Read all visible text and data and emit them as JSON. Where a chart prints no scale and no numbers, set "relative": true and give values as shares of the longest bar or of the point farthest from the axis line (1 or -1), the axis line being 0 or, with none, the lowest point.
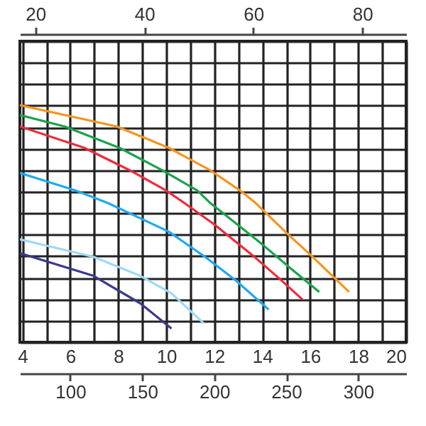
{
  "chart_data": {
    "type": "line",
    "relative": true,
    "grid": true,
    "xlim": [
      3.9,
      20
    ],
    "xticks": [
      4,
      {
        "value": 5,
        "label": null
      },
      6,
      {
        "value": 7,
        "label": null
      },
      8,
      {
        "value": 9,
        "label": null
      },
      10,
      {
        "value": 11,
        "label": null
      },
      12,
      {
        "value": 13,
        "label": null
      },
      14,
      {
        "value": 15,
        "label": null
      },
      16,
      {
        "value": 17,
        "label": null
      },
      18,
      {
        "value": 19,
        "label": null
      },
      20
    ],
    "x2lim": [
      17.17,
      88.06
    ],
    "x2ticks": [
      20,
      40,
      60,
      80
    ],
    "annotations": [
      "100",
      "150",
      "200",
      "250",
      "300"
    ],
    "series": [
      {
        "color": "#f7941d",
        "x": [
          3.9,
          7.95,
          10.11,
          11.84,
          13.08,
          13.73,
          15.08,
          16.05,
          17.03,
          17.62
        ],
        "values": [
          1.0,
          0.91,
          0.82,
          0.725,
          0.64,
          0.587,
          0.455,
          0.365,
          0.27,
          0.212
        ]
      },
      {
        "color": "#1aa34a",
        "x": [
          3.9,
          5.78,
          8.05,
          9.84,
          11.3,
          11.84,
          14.0,
          15.24,
          16.38
        ],
        "values": [
          0.958,
          0.91,
          0.82,
          0.725,
          0.64,
          0.587,
          0.413,
          0.307,
          0.212
        ]
      },
      {
        "color": "#ee2a3a",
        "x": [
          3.9,
          6.59,
          8.49,
          10.0,
          10.76,
          12.0,
          13.62,
          14.7,
          15.68
        ],
        "values": [
          0.91,
          0.82,
          0.725,
          0.64,
          0.587,
          0.497,
          0.365,
          0.27,
          0.18
        ]
      },
      {
        "color": "#1eaaf1",
        "x": [
          3.9,
          6.22,
          7.57,
          10.11,
          11.62,
          12.92,
          14.27
        ],
        "values": [
          0.714,
          0.64,
          0.587,
          0.466,
          0.36,
          0.259,
          0.138
        ]
      },
      {
        "color": "#9fd9f6",
        "x": [
          3.9,
          6.97,
          8.92,
          10.22,
          11.57
        ],
        "values": [
          0.434,
          0.36,
          0.28,
          0.206,
          0.079
        ]
      },
      {
        "color": "#3b3a8f",
        "x": [
          3.9,
          6.97,
          8.92,
          10.22
        ],
        "values": [
          0.376,
          0.28,
          0.164,
          0.058
        ]
      }
    ]
  }
}
